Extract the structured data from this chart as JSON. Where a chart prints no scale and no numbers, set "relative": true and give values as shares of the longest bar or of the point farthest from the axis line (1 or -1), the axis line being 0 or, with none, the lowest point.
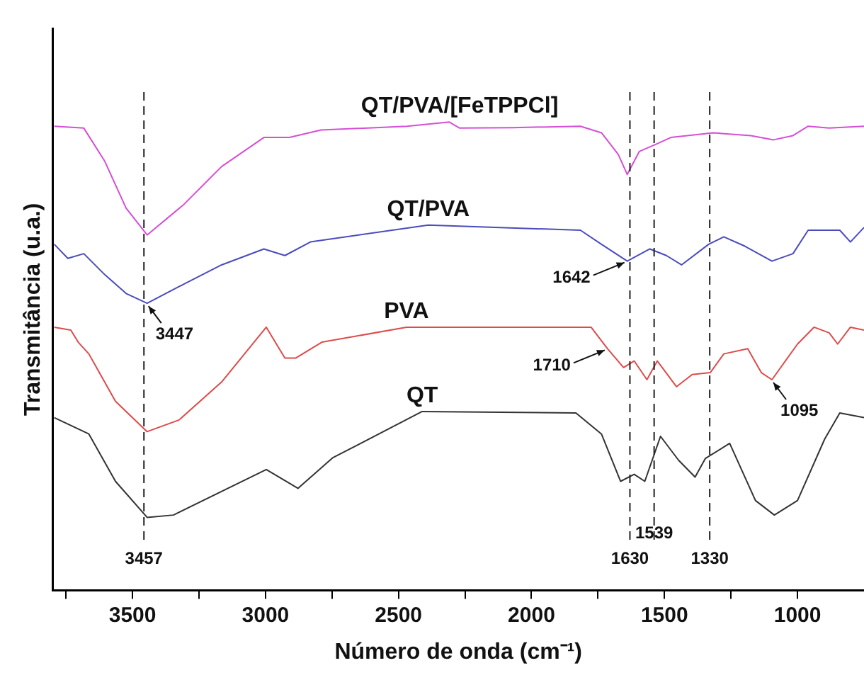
{
  "chart_data": {
    "type": "line",
    "relative": true,
    "xlabel": "Número de onda (cm⁻¹)",
    "ylabel": "Transmitância (u.a.)",
    "xlim": [
      3800,
      750
    ],
    "xticks": [
      {
        "value": 3750,
        "label": null
      },
      3500,
      {
        "value": 3250,
        "label": null
      },
      3000,
      {
        "value": 2750,
        "label": null
      },
      2500,
      {
        "value": 2250,
        "label": null
      },
      2000,
      {
        "value": 1750,
        "label": null
      },
      1500,
      {
        "value": 1250,
        "label": null
      },
      1000
    ],
    "grid": false,
    "legend": false,
    "line_style": "solid",
    "series": [
      {
        "name": "QT/PVA/[FeTPPCl]",
        "color": "#d54fd5",
        "x": [
          3794,
          3683,
          3604,
          3524,
          3445,
          3307,
          3165,
          3006,
          2910,
          2791,
          2468,
          2309,
          2270,
          2071,
          1816,
          1737,
          1674,
          1640,
          1595,
          1538,
          1476,
          1317,
          1175,
          1090,
          1017,
          960,
          881,
          750
        ],
        "values": [
          0.991,
          0.987,
          0.916,
          0.816,
          0.759,
          0.824,
          0.905,
          0.967,
          0.967,
          0.983,
          0.991,
          1,
          0.987,
          0.988,
          0.991,
          0.977,
          0.931,
          0.888,
          0.937,
          0.951,
          0.967,
          0.977,
          0.971,
          0.962,
          0.971,
          0.991,
          0.987,
          0.991
        ]
      },
      {
        "name": "QT/PVA",
        "color": "#4b4bbd",
        "x": [
          3794,
          3743,
          3683,
          3604,
          3524,
          3445,
          3307,
          3165,
          3006,
          2927,
          2831,
          2388,
          1816,
          1737,
          1640,
          1555,
          1493,
          1436,
          1334,
          1277,
          1198,
          1096,
          1017,
          960,
          841,
          801,
          750
        ],
        "values": [
          0.739,
          0.709,
          0.719,
          0.674,
          0.634,
          0.613,
          0.654,
          0.695,
          0.729,
          0.715,
          0.744,
          0.78,
          0.769,
          0.739,
          0.703,
          0.729,
          0.715,
          0.695,
          0.739,
          0.755,
          0.735,
          0.703,
          0.719,
          0.769,
          0.769,
          0.744,
          0.775
        ]
      },
      {
        "name": "PVA",
        "color": "#dd4b4b",
        "x": [
          3794,
          3732,
          3704,
          3664,
          3564,
          3445,
          3325,
          3165,
          2997,
          2927,
          2887,
          2788,
          2470,
          1776,
          1714,
          1654,
          1614,
          1566,
          1527,
          1455,
          1396,
          1328,
          1277,
          1187,
          1136,
          1096,
          1000,
          938,
          881,
          849,
          801,
          750
        ],
        "values": [
          0.562,
          0.556,
          0.53,
          0.505,
          0.404,
          0.339,
          0.364,
          0.445,
          0.562,
          0.496,
          0.496,
          0.53,
          0.562,
          0.562,
          0.516,
          0.476,
          0.49,
          0.45,
          0.49,
          0.435,
          0.461,
          0.465,
          0.505,
          0.516,
          0.465,
          0.45,
          0.526,
          0.562,
          0.55,
          0.526,
          0.562,
          0.556
        ]
      },
      {
        "name": "QT",
        "color": "#333333",
        "x": [
          3794,
          3664,
          3564,
          3445,
          3346,
          2997,
          2878,
          2748,
          2411,
          1833,
          1737,
          1665,
          1614,
          1574,
          1515,
          1447,
          1385,
          1346,
          1255,
          1158,
          1087,
          1000,
          898,
          841,
          750
        ],
        "values": [
          0.369,
          0.334,
          0.233,
          0.156,
          0.161,
          0.258,
          0.218,
          0.283,
          0.382,
          0.379,
          0.334,
          0.233,
          0.248,
          0.233,
          0.329,
          0.278,
          0.242,
          0.282,
          0.314,
          0.192,
          0.161,
          0.192,
          0.323,
          0.379,
          0.369
        ]
      }
    ],
    "ref_lines": [
      {
        "axis": "x",
        "value": 3457,
        "label": "3457",
        "color": "#222222",
        "line_style": "dashed"
      },
      {
        "axis": "x",
        "value": 1630,
        "label": "1630",
        "color": "#222222",
        "line_style": "dashed"
      },
      {
        "axis": "x",
        "value": 1539,
        "label": "1539",
        "color": "#222222",
        "line_style": "dashed"
      },
      {
        "axis": "x",
        "value": 1330,
        "label": "1330",
        "color": "#222222",
        "line_style": "dashed"
      }
    ],
    "annotations": [
      {
        "text": "3447",
        "x": 3445,
        "y": 0.613
      },
      {
        "text": "1642",
        "x": 1640,
        "y": 0.703
      },
      {
        "text": "1710",
        "x": 1714,
        "y": 0.516
      },
      {
        "text": "1095",
        "x": 1096,
        "y": 0.45
      }
    ]
  }
}
